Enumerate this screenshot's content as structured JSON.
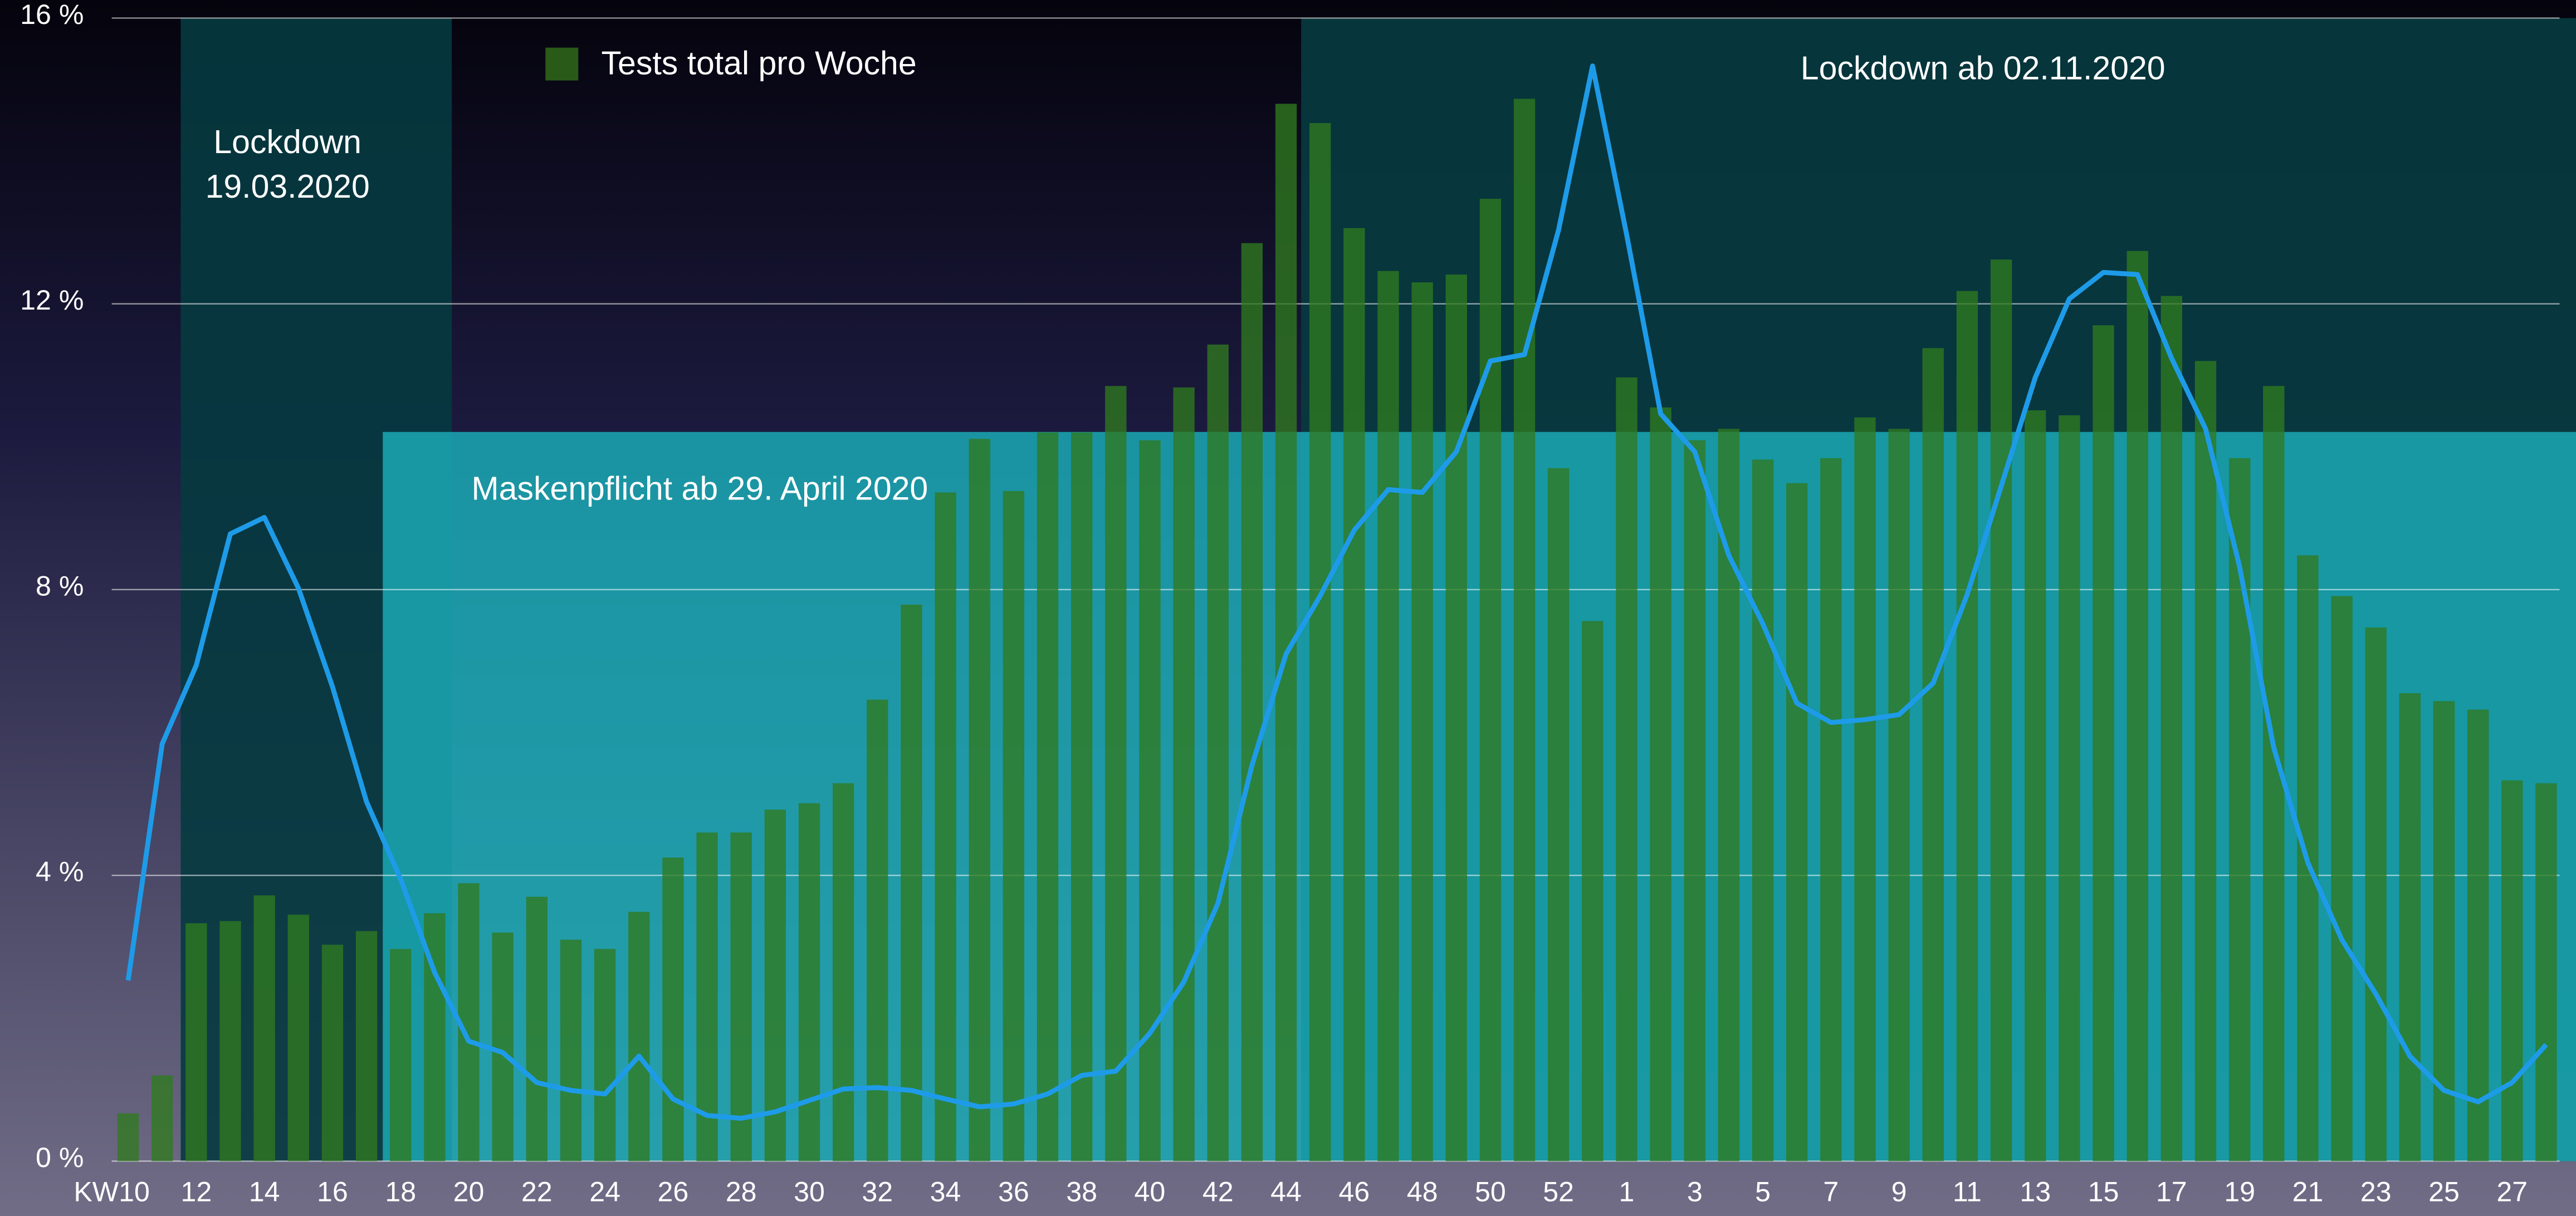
{
  "chart_data": {
    "type": "bar",
    "categories": [
      "KW10",
      null,
      "12",
      null,
      "14",
      null,
      "16",
      null,
      "18",
      null,
      "20",
      null,
      "22",
      null,
      "24",
      null,
      "26",
      null,
      "28",
      null,
      "30",
      null,
      "32",
      null,
      "34",
      null,
      "36",
      null,
      "38",
      null,
      "40",
      null,
      "42",
      null,
      "44",
      null,
      "46",
      null,
      "48",
      null,
      "50",
      null,
      "52",
      null,
      "1",
      null,
      "3",
      null,
      "5",
      null,
      "7",
      null,
      "9",
      null,
      "11",
      null,
      "13",
      null,
      "15",
      null,
      "17",
      null,
      "19",
      null,
      "21",
      null,
      "23",
      null,
      "25",
      null,
      "27",
      null
    ],
    "series": [
      {
        "name": "Tests total pro Woche",
        "type": "bar",
        "color": "#2f7a1f",
        "values": [
          0.67,
          1.2,
          3.33,
          3.36,
          3.72,
          3.45,
          3.03,
          3.22,
          2.97,
          3.47,
          3.89,
          3.2,
          3.7,
          3.1,
          2.97,
          3.49,
          4.25,
          4.6,
          4.6,
          4.92,
          5.01,
          5.29,
          6.46,
          7.79,
          9.36,
          10.11,
          9.38,
          10.2,
          10.2,
          10.85,
          10.09,
          10.83,
          11.43,
          12.85,
          14.8,
          14.53,
          13.06,
          12.46,
          12.3,
          12.41,
          13.47,
          14.87,
          9.7,
          7.56,
          10.97,
          10.55,
          10.09,
          10.25,
          9.82,
          9.49,
          9.84,
          10.41,
          10.25,
          11.38,
          12.18,
          12.62,
          10.51,
          10.44,
          11.7,
          12.74,
          12.11,
          11.2,
          9.84,
          10.85,
          8.48,
          7.91,
          7.47,
          6.55,
          6.44,
          6.32,
          5.33,
          5.29
        ]
      },
      {
        "type": "line",
        "color": "#1e9be8",
        "values": [
          2.53,
          5.84,
          6.94,
          8.78,
          9.01,
          8.02,
          6.64,
          5.03,
          3.95,
          2.64,
          1.68,
          1.52,
          1.1,
          0.99,
          0.94,
          1.47,
          0.87,
          0.64,
          0.6,
          0.69,
          0.85,
          1.01,
          1.03,
          0.99,
          0.87,
          0.76,
          0.8,
          0.94,
          1.2,
          1.26,
          1.79,
          2.51,
          3.61,
          5.54,
          7.1,
          7.91,
          8.83,
          9.4,
          9.36,
          9.93,
          11.2,
          11.29,
          13.03,
          15.33,
          12.97,
          10.46,
          9.93,
          8.48,
          7.52,
          6.41,
          6.14,
          6.18,
          6.25,
          6.69,
          7.93,
          9.45,
          10.97,
          12.07,
          12.44,
          12.41,
          11.24,
          10.25,
          8.32,
          5.79,
          4.18,
          3.1,
          2.34,
          1.47,
          0.99,
          0.83,
          1.1,
          1.63
        ]
      }
    ],
    "ylim": [
      0,
      16
    ],
    "yticks": [
      {
        "value": 0,
        "label": "0 %"
      },
      {
        "value": 4,
        "label": "4 %"
      },
      {
        "value": 8,
        "label": "8 %"
      },
      {
        "value": 12,
        "label": "12 %"
      },
      {
        "value": 16,
        "label": "16 %"
      }
    ],
    "grid": true,
    "annotations": [
      "Lockdown",
      "19.03.2020",
      "Maskenpflicht ab 29. April 2020",
      "Lockdown ab 02.11.2020"
    ]
  }
}
